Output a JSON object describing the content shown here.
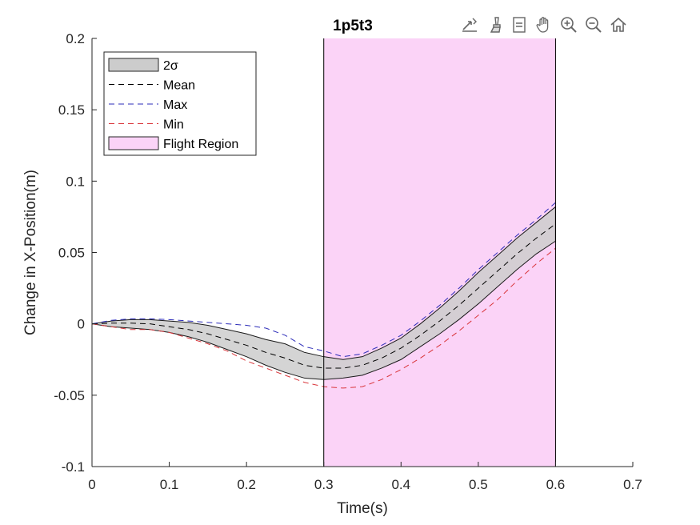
{
  "toolbar": {
    "buttons": [
      {
        "name": "export-icon"
      },
      {
        "name": "brush-icon"
      },
      {
        "name": "data-tips-icon"
      },
      {
        "name": "pan-hand-icon"
      },
      {
        "name": "zoom-in-icon"
      },
      {
        "name": "zoom-out-icon"
      },
      {
        "name": "home-icon"
      }
    ]
  },
  "chart_data": {
    "type": "line",
    "title": "1p5t3",
    "xlabel": "Time(s)",
    "ylabel": "Change in X-Position(m)",
    "xlim": [
      0,
      0.7
    ],
    "ylim": [
      -0.1,
      0.2
    ],
    "xticks": [
      0,
      0.1,
      0.2,
      0.3,
      0.4,
      0.5,
      0.6,
      0.7
    ],
    "xtick_labels": [
      "0",
      "0.1",
      "0.2",
      "0.3",
      "0.4",
      "0.5",
      "0.6",
      "0.7"
    ],
    "yticks": [
      -0.1,
      -0.05,
      0,
      0.05,
      0.1,
      0.15,
      0.2
    ],
    "ytick_labels": [
      "-0.1",
      "-0.05",
      "0",
      "0.05",
      "0.1",
      "0.15",
      "0.2"
    ],
    "grid": false,
    "legend_position": "top-left",
    "legend": [
      {
        "label": "2σ",
        "kind": "patch",
        "color": "#cccccc"
      },
      {
        "label": "Mean",
        "kind": "dashed-line",
        "color": "#000000"
      },
      {
        "label": "Max",
        "kind": "dashed-line",
        "color": "#2b2bb8"
      },
      {
        "label": "Min",
        "kind": "dashed-line",
        "color": "#d9353a"
      },
      {
        "label": "Flight Region",
        "kind": "patch",
        "color": "#fbd3f7"
      }
    ],
    "flight_region": {
      "x_start": 0.3,
      "x_end": 0.6,
      "color": "#fbd3f7"
    },
    "colors": {
      "band": "#cccccc",
      "mean": "#000000",
      "max": "#2b2bb8",
      "min": "#d9353a"
    },
    "x": [
      0,
      0.025,
      0.05,
      0.075,
      0.1,
      0.125,
      0.15,
      0.175,
      0.2,
      0.225,
      0.25,
      0.275,
      0.3,
      0.325,
      0.35,
      0.375,
      0.4,
      0.425,
      0.45,
      0.475,
      0.5,
      0.525,
      0.55,
      0.575,
      0.6
    ],
    "series": [
      {
        "name": "Mean",
        "values": [
          0,
          0.0005,
          0.0005,
          0.0,
          -0.002,
          -0.004,
          -0.007,
          -0.011,
          -0.015,
          -0.02,
          -0.024,
          -0.029,
          -0.031,
          -0.031,
          -0.029,
          -0.024,
          -0.017,
          -0.008,
          0.002,
          0.013,
          0.025,
          0.037,
          0.049,
          0.06,
          0.07
        ]
      },
      {
        "name": "2σ upper",
        "values": [
          0,
          0.002,
          0.003,
          0.003,
          0.002,
          0.001,
          -0.001,
          -0.004,
          -0.007,
          -0.011,
          -0.014,
          -0.02,
          -0.023,
          -0.025,
          -0.023,
          -0.017,
          -0.01,
          0.0,
          0.011,
          0.023,
          0.036,
          0.048,
          0.06,
          0.071,
          0.082
        ]
      },
      {
        "name": "2σ lower",
        "values": [
          0,
          -0.002,
          -0.003,
          -0.004,
          -0.006,
          -0.009,
          -0.013,
          -0.018,
          -0.023,
          -0.029,
          -0.034,
          -0.038,
          -0.039,
          -0.038,
          -0.036,
          -0.031,
          -0.025,
          -0.016,
          -0.007,
          0.003,
          0.014,
          0.026,
          0.038,
          0.049,
          0.058
        ]
      },
      {
        "name": "Max",
        "values": [
          0,
          0.0025,
          0.0035,
          0.0035,
          0.003,
          0.002,
          0.001,
          0.0,
          -0.001,
          -0.003,
          -0.008,
          -0.016,
          -0.019,
          -0.023,
          -0.021,
          -0.015,
          -0.008,
          0.002,
          0.013,
          0.025,
          0.038,
          0.05,
          0.062,
          0.073,
          0.085
        ]
      },
      {
        "name": "Min",
        "values": [
          0,
          -0.002,
          -0.004,
          -0.004,
          -0.006,
          -0.01,
          -0.014,
          -0.019,
          -0.026,
          -0.031,
          -0.036,
          -0.041,
          -0.044,
          -0.045,
          -0.044,
          -0.039,
          -0.032,
          -0.024,
          -0.015,
          -0.005,
          0.006,
          0.017,
          0.03,
          0.042,
          0.053
        ]
      }
    ]
  }
}
